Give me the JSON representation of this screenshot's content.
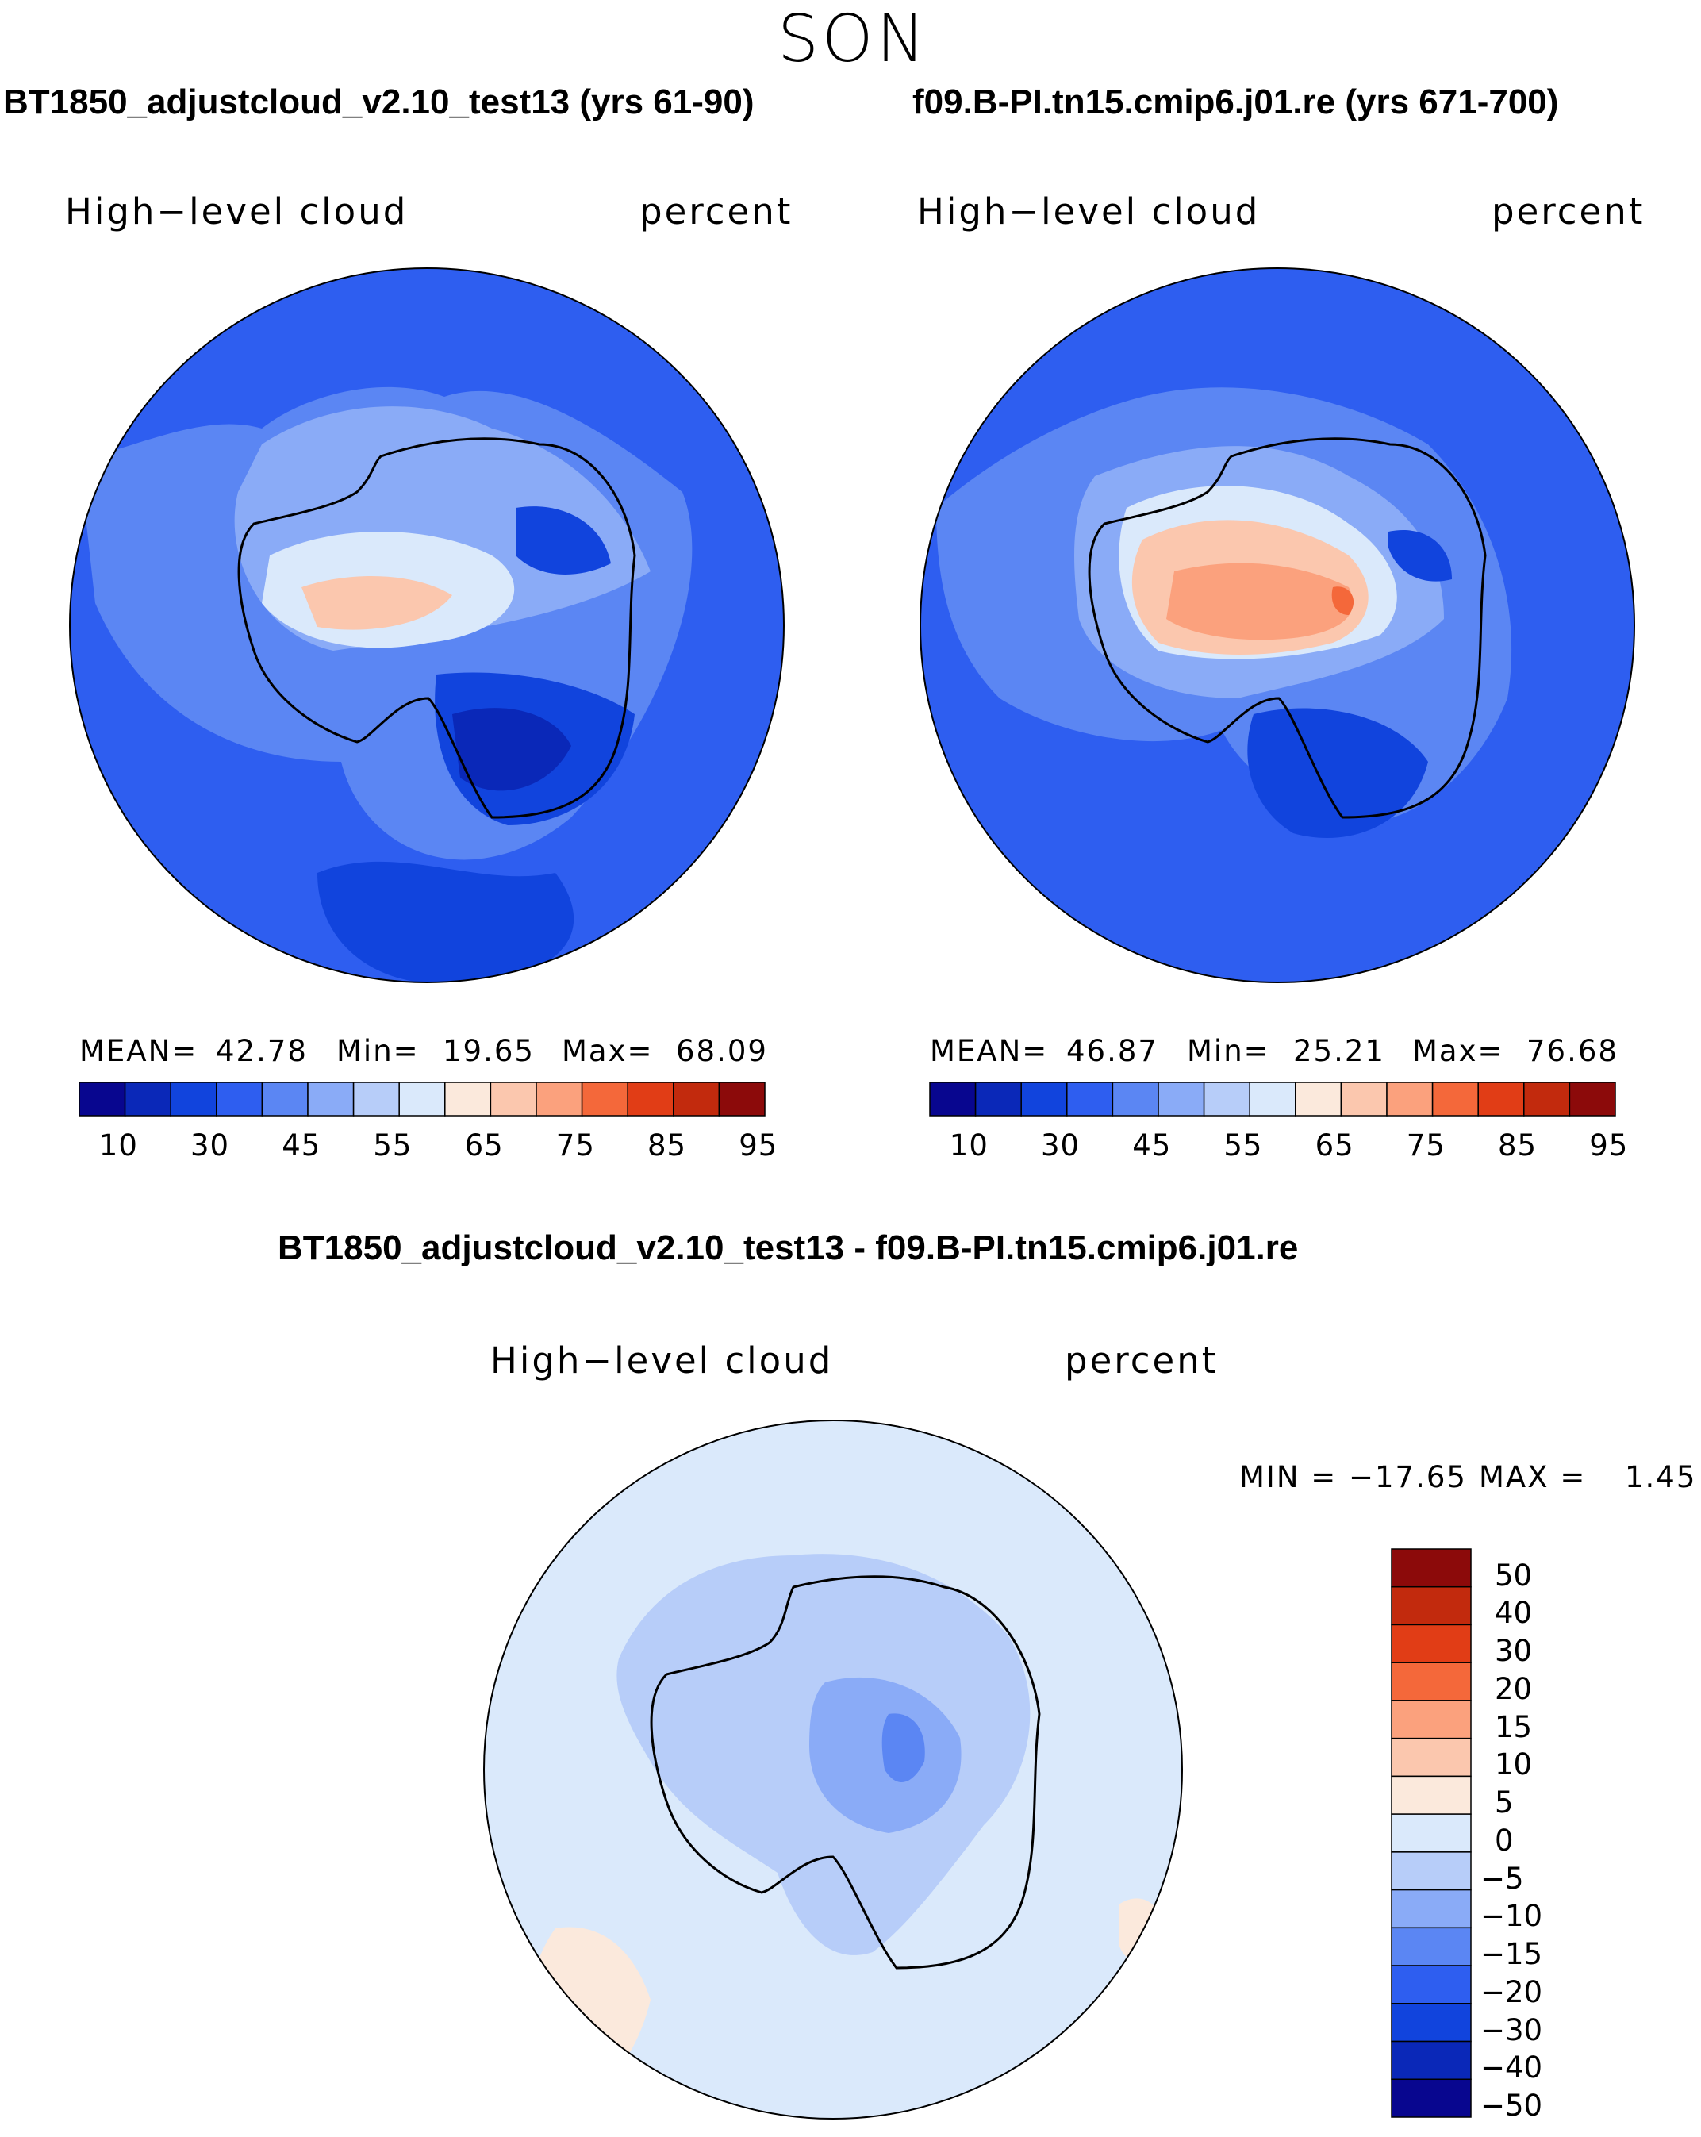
{
  "figure": {
    "season": "SON",
    "panels": [
      {
        "title": "BT1850_adjustcloud_v2.10_test13 (yrs 61-90)",
        "variable": "High−level cloud",
        "units": "percent",
        "stats": {
          "mean_label": "MEAN=",
          "mean": "42.78",
          "min_label": "Min=",
          "min": "19.65",
          "max_label": "Max=",
          "max": "68.09"
        }
      },
      {
        "title": "f09.B-PI.tn15.cmip6.j01.re (yrs 671-700)",
        "variable": "High−level cloud",
        "units": "percent",
        "stats": {
          "mean_label": "MEAN=",
          "mean": "46.87",
          "min_label": "Min=",
          "min": "25.21",
          "max_label": "Max=",
          "max": "76.68"
        }
      },
      {
        "title": "BT1850_adjustcloud_v2.10_test13 - f09.B-PI.tn15.cmip6.j01.re",
        "variable": "High−level cloud",
        "units": "percent",
        "stats": {
          "min_label": "MIN =",
          "min": "−17.65",
          "max_label": "MAX =",
          "max": "1.45"
        }
      }
    ],
    "colors": {
      "abs_scale": [
        "#08068f",
        "#0a28b8",
        "#1144dd",
        "#2e5ef0",
        "#5b86f3",
        "#8aabf7",
        "#b7cdf9",
        "#dae9fb",
        "#fbe9dc",
        "#fbc7ae",
        "#fba17d",
        "#f4683a",
        "#e13d16",
        "#c22a0d",
        "#8c0a0a"
      ],
      "diff_scale": [
        "#8c0a0a",
        "#c22a0d",
        "#e13d16",
        "#f4683a",
        "#fba17d",
        "#fbc7ae",
        "#fbe9dc",
        "#dae9fb",
        "#b7cdf9",
        "#8aabf7",
        "#5b86f3",
        "#2e5ef0",
        "#1144dd",
        "#0a28b8",
        "#08068f"
      ],
      "coastline": "#000000"
    }
  },
  "chart_data": [
    {
      "type": "heatmap",
      "projection": "south-polar-stereographic",
      "title": "BT1850_adjustcloud_v2.10_test13 (yrs 61-90)",
      "variable": "High-level cloud",
      "units": "percent",
      "mean": 42.78,
      "min": 19.65,
      "max": 68.09,
      "colorbar_levels": [
        5,
        10,
        20,
        30,
        40,
        45,
        50,
        55,
        60,
        65,
        70,
        75,
        80,
        85,
        90,
        95
      ],
      "colorbar_labels": [
        "10",
        "30",
        "45",
        "55",
        "65",
        "75",
        "85",
        "95"
      ]
    },
    {
      "type": "heatmap",
      "projection": "south-polar-stereographic",
      "title": "f09.B-PI.tn15.cmip6.j01.re (yrs 671-700)",
      "variable": "High-level cloud",
      "units": "percent",
      "mean": 46.87,
      "min": 25.21,
      "max": 76.68,
      "colorbar_levels": [
        5,
        10,
        20,
        30,
        40,
        45,
        50,
        55,
        60,
        65,
        70,
        75,
        80,
        85,
        90,
        95
      ],
      "colorbar_labels": [
        "10",
        "30",
        "45",
        "55",
        "65",
        "75",
        "85",
        "95"
      ]
    },
    {
      "type": "heatmap",
      "projection": "south-polar-stereographic",
      "title": "BT1850_adjustcloud_v2.10_test13 - f09.B-PI.tn15.cmip6.j01.re",
      "variable": "High-level cloud",
      "units": "percent",
      "min": -17.65,
      "max": 1.45,
      "colorbar_labels": [
        "50",
        "40",
        "30",
        "20",
        "15",
        "10",
        "5",
        "0",
        "−5",
        "−10",
        "−15",
        "−20",
        "−30",
        "−40",
        "−50"
      ]
    }
  ]
}
